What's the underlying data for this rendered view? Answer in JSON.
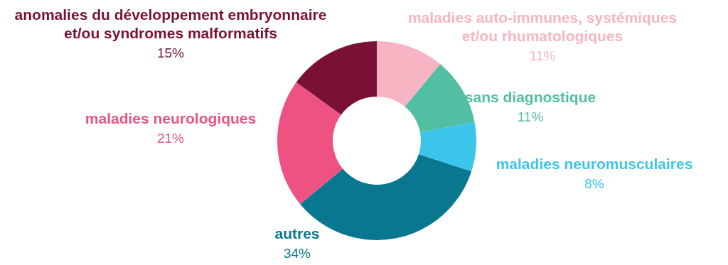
{
  "chart_data": {
    "type": "donut",
    "categories": [
      "maladies auto-immunes, systémiques et/ou rhumatologiques",
      "sans diagnostique",
      "maladies neuromusculaires",
      "autres",
      "maladies neurologiques",
      "anomalies du développement embryonnaire et/ou syndromes malformatifs"
    ],
    "values": [
      11,
      11,
      8,
      34,
      21,
      15
    ],
    "colors": [
      "#f7b5c3",
      "#52bfa3",
      "#3cc5ea",
      "#0a7791",
      "#ee5282",
      "#7a1035"
    ],
    "value_labels": [
      "11%",
      "11%",
      "8%",
      "34%",
      "21%",
      "15%"
    ],
    "legend": false
  }
}
